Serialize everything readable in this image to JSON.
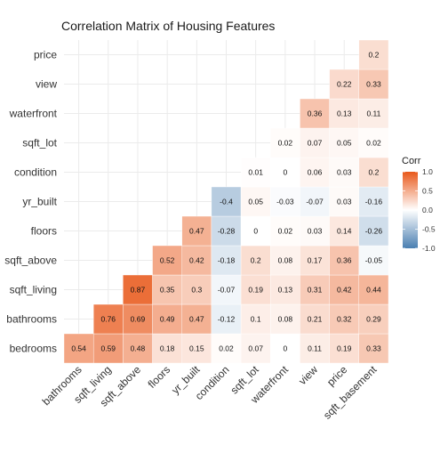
{
  "chart_data": {
    "type": "heatmap",
    "title": "Correlation Matrix of Housing Features",
    "xlabel": "",
    "ylabel": "",
    "x_categories": [
      "bathrooms",
      "sqft_living",
      "sqft_above",
      "floors",
      "yr_built",
      "condition",
      "sqft_lot",
      "waterfront",
      "view",
      "price",
      "sqft_basement"
    ],
    "y_categories": [
      "bedrooms",
      "bathrooms",
      "sqft_living",
      "sqft_above",
      "floors",
      "yr_built",
      "condition",
      "sqft_lot",
      "waterfront",
      "view",
      "price"
    ],
    "values": [
      [
        0.54,
        0.59,
        0.48,
        0.18,
        0.15,
        0.02,
        0.07,
        0,
        0.11,
        0.19,
        0.33
      ],
      [
        null,
        0.76,
        0.69,
        0.49,
        0.47,
        -0.12,
        0.1,
        0.08,
        0.21,
        0.32,
        0.29
      ],
      [
        null,
        null,
        0.87,
        0.35,
        0.3,
        -0.07,
        0.19,
        0.13,
        0.31,
        0.42,
        0.44
      ],
      [
        null,
        null,
        null,
        0.52,
        0.42,
        -0.18,
        0.2,
        0.08,
        0.17,
        0.36,
        -0.05
      ],
      [
        null,
        null,
        null,
        null,
        0.47,
        -0.28,
        0,
        0.02,
        0.03,
        0.14,
        -0.26
      ],
      [
        null,
        null,
        null,
        null,
        null,
        -0.4,
        0.05,
        -0.03,
        -0.07,
        0.03,
        -0.16
      ],
      [
        null,
        null,
        null,
        null,
        null,
        null,
        0.01,
        0,
        0.06,
        0.03,
        0.2
      ],
      [
        null,
        null,
        null,
        null,
        null,
        null,
        null,
        0.02,
        0.07,
        0.05,
        0.02
      ],
      [
        null,
        null,
        null,
        null,
        null,
        null,
        null,
        null,
        0.36,
        0.13,
        0.11
      ],
      [
        null,
        null,
        null,
        null,
        null,
        null,
        null,
        null,
        null,
        0.22,
        0.33
      ],
      [
        null,
        null,
        null,
        null,
        null,
        null,
        null,
        null,
        null,
        null,
        0.2
      ]
    ],
    "legend": {
      "title": "Corr",
      "position": "right",
      "breaks": [
        "1.0",
        "0.5",
        "0.0",
        "-0.5",
        "-1.0"
      ],
      "limits": [
        -1,
        1
      ]
    },
    "colors": {
      "low": "#4a7fb1",
      "mid": "#ffffff",
      "high": "#e8581a"
    },
    "grid": true
  }
}
